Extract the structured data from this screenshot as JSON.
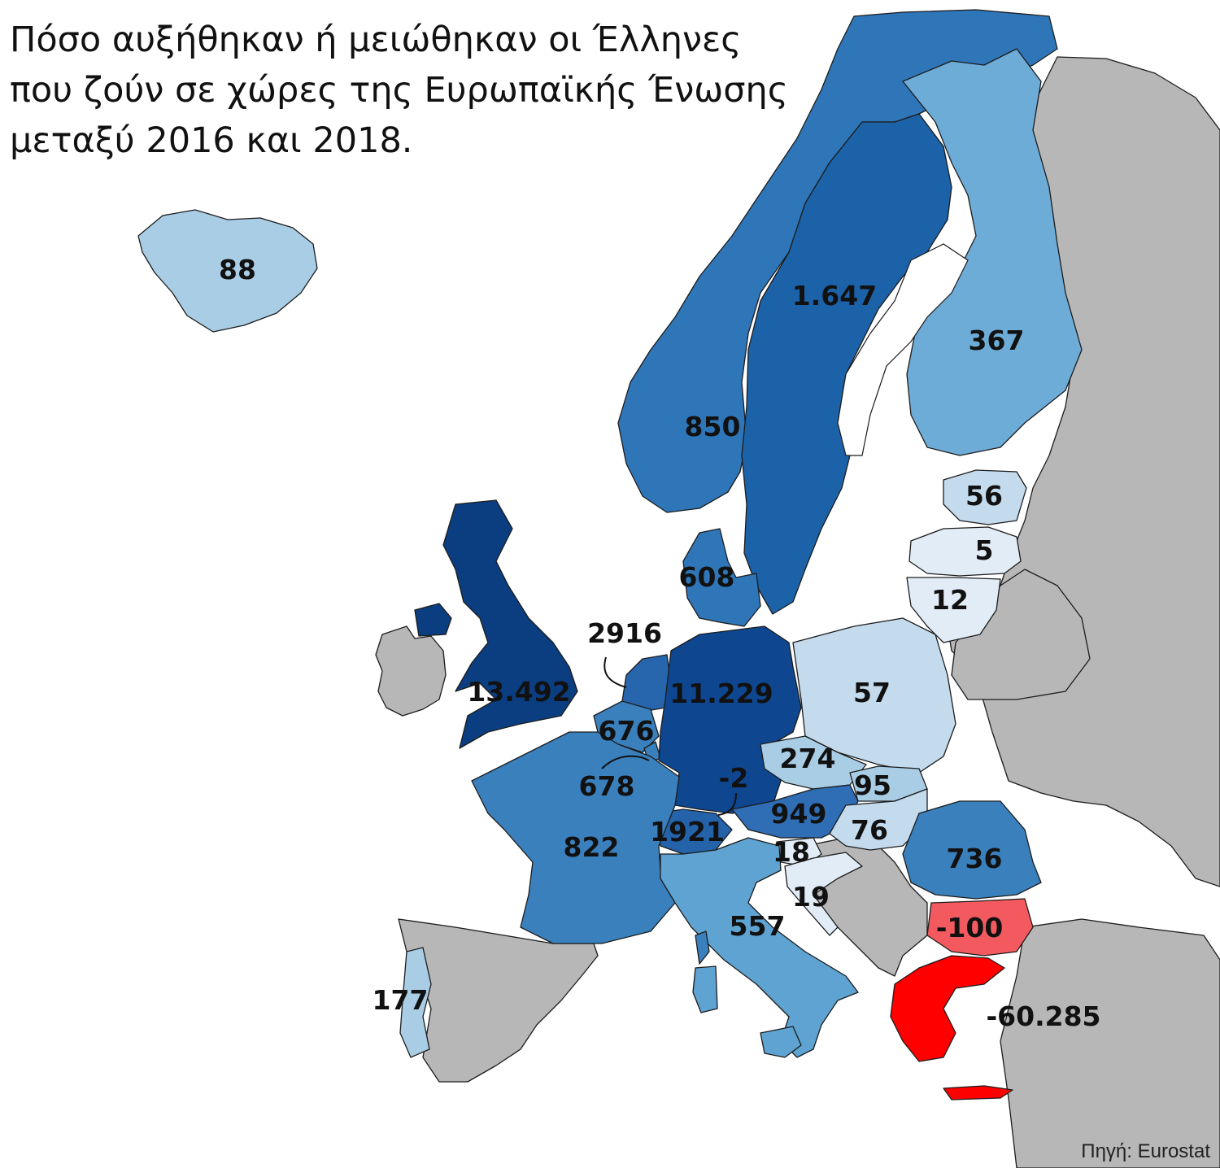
{
  "title": {
    "line1": "Πόσο αυξήθηκαν ή μειώθηκαν οι Έλληνες",
    "line2": "που ζούν σε χώρες της Ευρωπαϊκής Ένωσης",
    "line3": "μεταξύ 2016 και 2018."
  },
  "source": "Πηγή: Eurostat",
  "colors": {
    "darkest_blue": "#0b3e80",
    "dark_blue": "#1c62a8",
    "mid_blue": "#3a80bd",
    "light_blue": "#5ea3d2",
    "pale_blue": "#a9cde5",
    "very_pale_blue": "#c4dbee",
    "faint_blue": "#e2ecf7",
    "red": "#ff0000",
    "light_red": "#f35a5f",
    "non_member_gray": "#b7b7b7"
  },
  "countries": {
    "iceland": {
      "label": "88"
    },
    "norway": {
      "label": "850"
    },
    "sweden": {
      "label": "1.647"
    },
    "finland": {
      "label": "367"
    },
    "estonia": {
      "label": "56"
    },
    "latvia": {
      "label": "5"
    },
    "lithuania": {
      "label": "12"
    },
    "denmark": {
      "label": "608"
    },
    "uk": {
      "label": "13.492"
    },
    "netherlands": {
      "label": "2916"
    },
    "belgium": {
      "label": "676"
    },
    "luxembourg": {
      "label": "678"
    },
    "germany": {
      "label": "11.229"
    },
    "poland": {
      "label": "57"
    },
    "czechia": {
      "label": "274"
    },
    "slovakia": {
      "label": "95"
    },
    "liechtenstein": {
      "label": "-2"
    },
    "austria": {
      "label": "949"
    },
    "hungary": {
      "label": "76"
    },
    "switzerland": {
      "label": "1921"
    },
    "france": {
      "label": "822"
    },
    "slovenia": {
      "label": "18"
    },
    "croatia": {
      "label": "19"
    },
    "italy": {
      "label": "557"
    },
    "romania": {
      "label": "736"
    },
    "bulgaria": {
      "label": "-100"
    },
    "greece": {
      "label": "-60.285"
    },
    "portugal": {
      "label": "177"
    }
  }
}
